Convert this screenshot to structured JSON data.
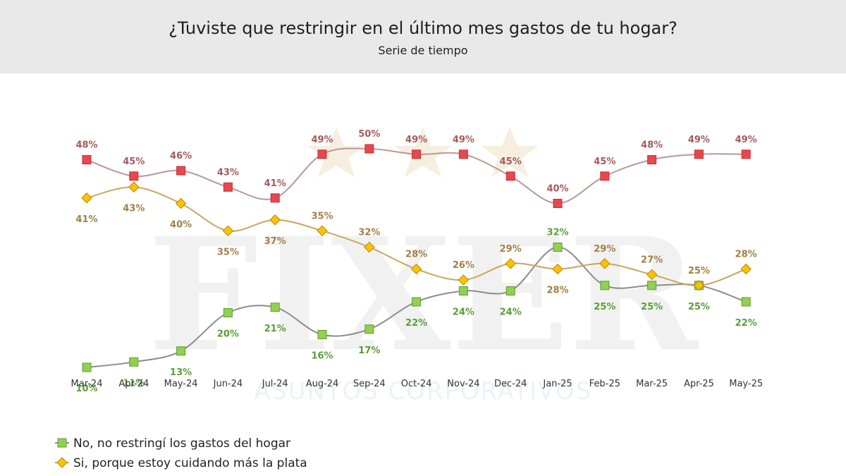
{
  "header": {
    "title": "¿Tuviste que restringir en el último mes gastos de tu hogar?",
    "subtitle": "Serie de tiempo"
  },
  "watermark": {
    "text": "FIXER",
    "subtext": "ASUNTOS CORPORATIVOS"
  },
  "chart_data": {
    "type": "line",
    "title": "¿Tuviste que restringir en el último mes gastos de tu hogar?",
    "subtitle": "Serie de tiempo",
    "categories": [
      "Mar-24",
      "Apr-24",
      "May-24",
      "Jun-24",
      "Jul-24",
      "Aug-24",
      "Sep-24",
      "Oct-24",
      "Nov-24",
      "Dec-24",
      "Jan-25",
      "Feb-25",
      "Mar-25",
      "Apr-25",
      "May-25"
    ],
    "ylim": [
      0,
      60
    ],
    "grid": false,
    "legend_position": "bottom-left",
    "series": [
      {
        "name": "No, no restringí los gastos del hogar",
        "color": "#92d050",
        "label_color": "#5a9e3a",
        "line_color": "#8c8c8c",
        "marker": "square",
        "values": [
          10,
          11,
          13,
          20,
          21,
          16,
          17,
          22,
          24,
          24,
          32,
          25,
          25,
          25,
          22
        ],
        "labels": [
          "10%",
          "11%",
          "13%",
          "20%",
          "21%",
          "16%",
          "17%",
          "22%",
          "24%",
          "24%",
          "32%",
          "25%",
          "25%",
          "25%",
          "22%"
        ]
      },
      {
        "name": "Si, porque estoy cuidando más la plata",
        "color": "#ffc000",
        "label_color": "#a08048",
        "line_color": "#c9a560",
        "marker": "diamond",
        "values": [
          41,
          43,
          40,
          35,
          37,
          35,
          32,
          28,
          26,
          29,
          28,
          29,
          27,
          25,
          28
        ],
        "labels": [
          "41%",
          "43%",
          "40%",
          "35%",
          "37%",
          "35%",
          "32%",
          "28%",
          "26%",
          "29%",
          "28%",
          "29%",
          "27%",
          "25%",
          "28%"
        ]
      },
      {
        "name": "",
        "color": "#e8474f",
        "label_color": "#a55a5a",
        "line_color": "#b89898",
        "marker": "square",
        "values": [
          48,
          45,
          46,
          43,
          41,
          49,
          50,
          49,
          49,
          45,
          40,
          45,
          48,
          49,
          49
        ],
        "labels": [
          "48%",
          "45%",
          "46%",
          "43%",
          "41%",
          "49%",
          "50%",
          "49%",
          "49%",
          "45%",
          "40%",
          "45%",
          "48%",
          "49%",
          "49%"
        ]
      }
    ]
  }
}
